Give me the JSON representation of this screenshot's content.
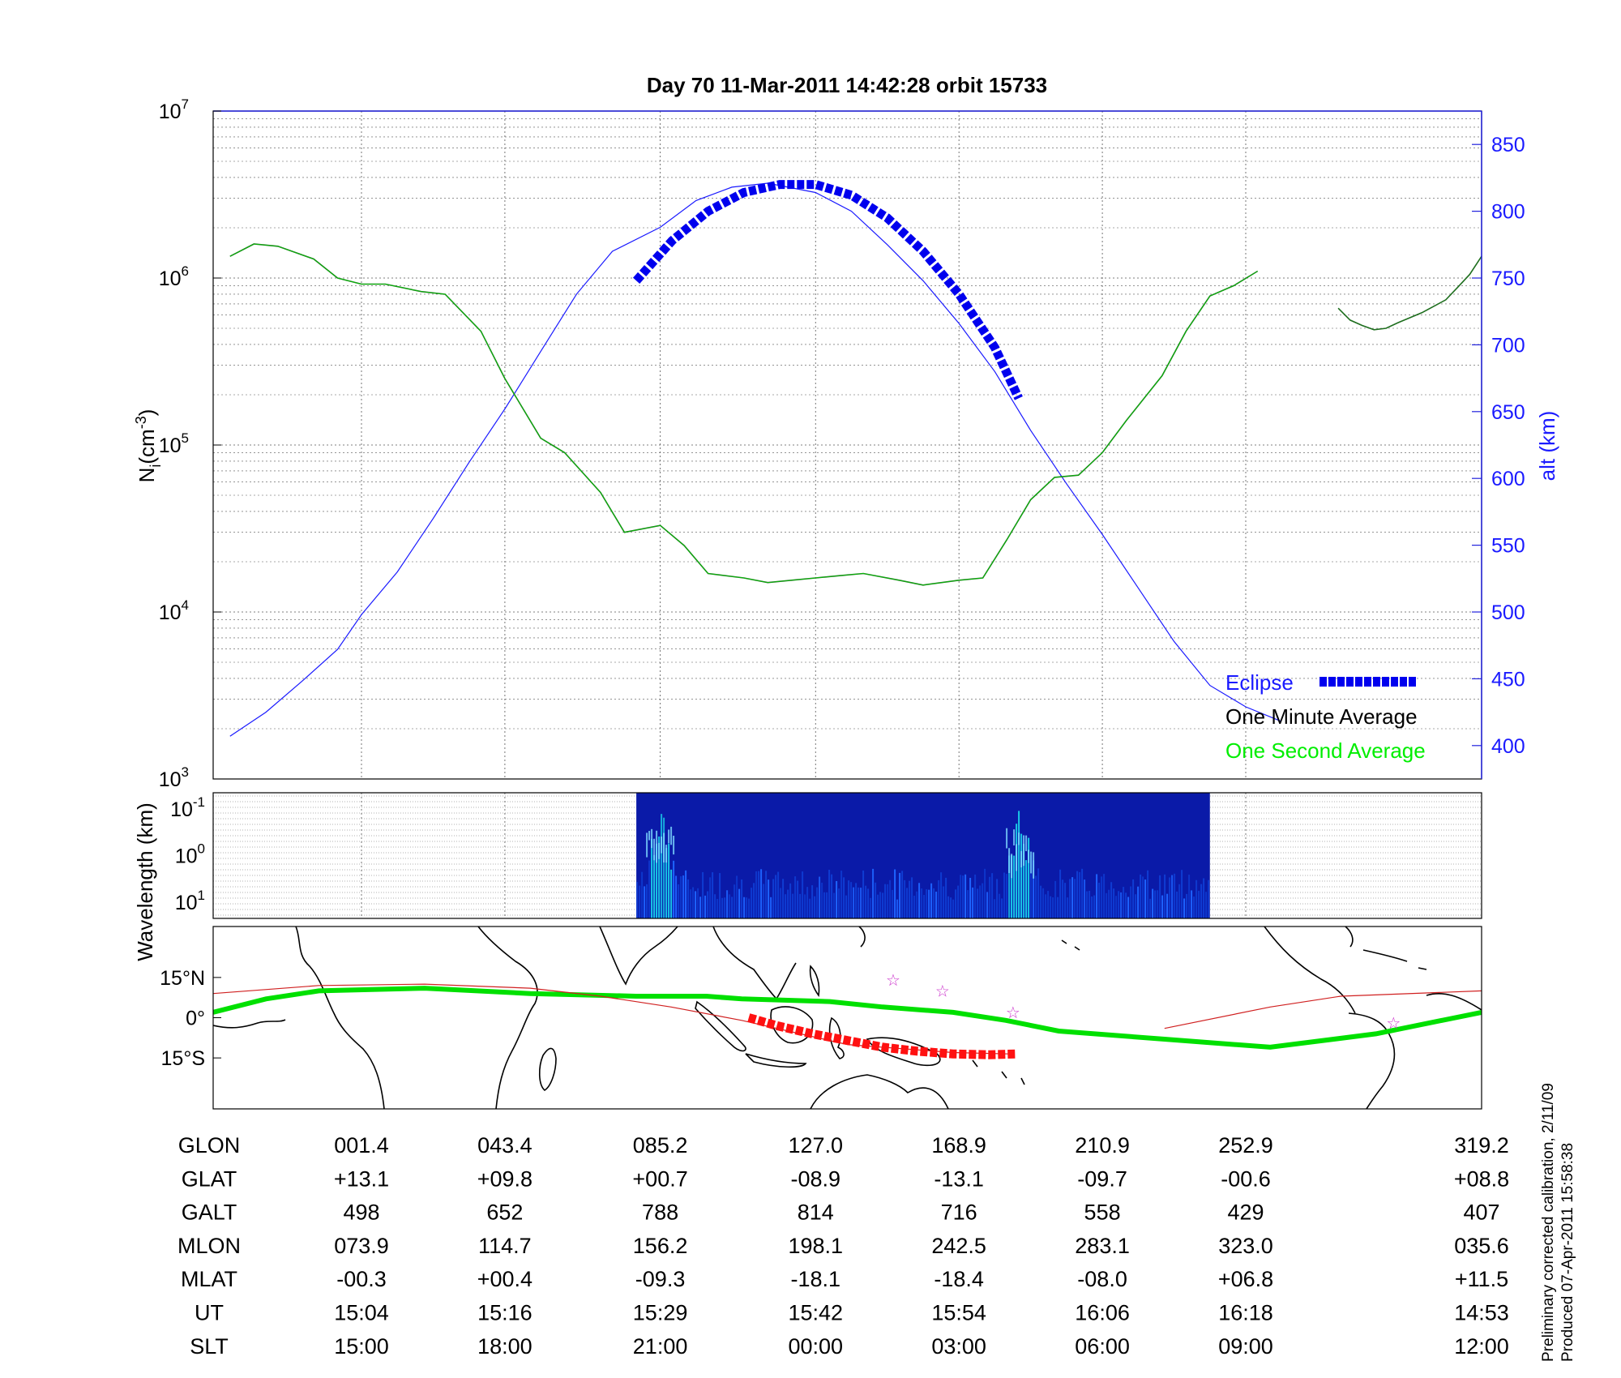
{
  "chart_data": [
    {
      "type": "line",
      "title": "Day 70  11-Mar-2011 14:42:28   orbit 15733",
      "ylabel_left": "N",
      "ylabel_left_sub": "i",
      "ylabel_left_unit": "(cm",
      "ylabel_left_exp": "-3",
      "ylabel_left_close": ")",
      "ylabel_right": "alt (km)",
      "yscale_left": "log",
      "ylim_left": [
        1000,
        10000000
      ],
      "yticks_left": [
        {
          "base": "10",
          "exp": "3",
          "value": 1000
        },
        {
          "base": "10",
          "exp": "4",
          "value": 10000
        },
        {
          "base": "10",
          "exp": "5",
          "value": 100000
        },
        {
          "base": "10",
          "exp": "6",
          "value": 1000000
        },
        {
          "base": "10",
          "exp": "7",
          "value": 10000000
        }
      ],
      "ylim_right": [
        375,
        875
      ],
      "yticks_right": [
        "400",
        "450",
        "500",
        "550",
        "600",
        "650",
        "700",
        "750",
        "800",
        "850"
      ],
      "grid": true,
      "legend_placement": "bottom-right",
      "legend": [
        {
          "label": "Eclipse",
          "color": "#0000ee",
          "style": "thick-dashed"
        },
        {
          "label": "One Minute Average",
          "color": "#000000",
          "style": "line"
        },
        {
          "label": "One Second Average",
          "color": "#00ee00",
          "style": "line"
        }
      ],
      "x_ticks_ut": [
        "15:04",
        "15:16",
        "15:29",
        "15:42",
        "15:54",
        "16:06",
        "16:18"
      ],
      "series": [
        {
          "name": "One Minute Average",
          "axis": "left",
          "color": "#1e6e1e",
          "x_ut": [
            "14:53",
            "14:55",
            "14:57",
            "15:00",
            "15:02",
            "15:04",
            "15:06",
            "15:09",
            "15:11",
            "15:14",
            "15:16",
            "15:19",
            "15:21",
            "15:24",
            "15:26",
            "15:29",
            "15:31",
            "15:33",
            "15:36",
            "15:38",
            "15:40",
            "15:42",
            "15:44",
            "15:46",
            "15:49",
            "15:51",
            "15:54",
            "15:56",
            "15:58",
            "16:00",
            "16:02",
            "16:04",
            "16:06",
            "16:08",
            "16:11",
            "16:13",
            "16:15",
            "16:17",
            "16:19"
          ],
          "values": [
            1350000,
            1600000,
            1550000,
            1300000,
            1000000,
            920000,
            920000,
            830000,
            800000,
            480000,
            250000,
            110000,
            90000,
            52000,
            30000,
            33000,
            25000,
            17000,
            16000,
            15000,
            15500,
            16000,
            16500,
            17000,
            15500,
            14500,
            15500,
            16000,
            27000,
            47000,
            64000,
            66000,
            90000,
            140000,
            260000,
            480000,
            780000,
            900000,
            1100000
          ]
        },
        {
          "name": "One Minute Average (late)",
          "axis": "left",
          "color": "#1e6e1e",
          "x_ut": [
            "14:41",
            "14:42",
            "14:43",
            "14:44",
            "14:45",
            "14:46",
            "14:48",
            "14:50",
            "14:51",
            "14:52",
            "14:53"
          ],
          "values": [
            660000,
            560000,
            520000,
            490000,
            500000,
            540000,
            620000,
            740000,
            880000,
            1050000,
            1350000
          ]
        },
        {
          "name": "Altitude",
          "axis": "right",
          "color": "#1a1aff",
          "x_ut": [
            "14:53",
            "14:56",
            "14:59",
            "15:02",
            "15:04",
            "15:07",
            "15:10",
            "15:13",
            "15:16",
            "15:19",
            "15:22",
            "15:25",
            "15:29",
            "15:32",
            "15:35",
            "15:38",
            "15:42",
            "15:45",
            "15:48",
            "15:51",
            "15:54",
            "15:57",
            "16:00",
            "16:03",
            "16:06",
            "16:09",
            "16:12",
            "16:15",
            "16:18",
            "16:21"
          ],
          "values": [
            407,
            425,
            448,
            472,
            498,
            530,
            570,
            612,
            652,
            695,
            738,
            770,
            788,
            808,
            818,
            821,
            814,
            800,
            775,
            748,
            716,
            680,
            636,
            596,
            558,
            518,
            478,
            445,
            429,
            418
          ]
        },
        {
          "name": "Eclipse",
          "axis": "right",
          "color": "#0000ee",
          "x_ut": [
            "15:27",
            "15:30",
            "15:33",
            "15:36",
            "15:39",
            "15:42",
            "15:45",
            "15:48",
            "15:51",
            "15:54",
            "15:57",
            "15:59"
          ],
          "values": [
            748,
            778,
            800,
            814,
            820,
            820,
            812,
            795,
            770,
            738,
            698,
            660
          ]
        }
      ]
    },
    {
      "type": "heatmap",
      "ylabel": "Wavelength (km)",
      "yscale": "log",
      "yticks": [
        {
          "base": "10",
          "exp": "-1"
        },
        {
          "base": "10",
          "exp": "0"
        },
        {
          "base": "10",
          "exp": "1"
        }
      ],
      "data_span_ut": [
        "15:27",
        "16:15"
      ],
      "colormap": "jet",
      "high_activity_near_ut": [
        "15:29",
        "15:59"
      ]
    },
    {
      "type": "map",
      "yticks": [
        "15°N",
        "0°",
        "15°S"
      ],
      "series": [
        {
          "name": "magnetic equator",
          "color": "#00e000",
          "lon": [
            -180,
            -165,
            -150,
            -120,
            -90,
            -60,
            -40,
            -30,
            -5,
            10,
            30,
            45,
            60,
            90,
            120,
            150,
            180
          ],
          "lat": [
            2,
            7,
            10,
            11,
            9,
            8,
            8,
            7,
            6,
            4,
            2,
            -1,
            -5,
            -8,
            -11,
            -6,
            2
          ]
        },
        {
          "name": "satellite track",
          "color": "#d02020",
          "lon": [
            -180,
            -150,
            -120,
            -90,
            -70,
            -50,
            -30,
            -10,
            0,
            30,
            46
          ],
          "lat": [
            9,
            12,
            12.5,
            11,
            8,
            4,
            -1,
            -7,
            -10,
            -13,
            -13.5
          ]
        },
        {
          "name": "satellite track (late)",
          "color": "#d02020",
          "lon": [
            90,
            120,
            140,
            180
          ],
          "lat": [
            -4,
            4,
            8,
            10
          ]
        },
        {
          "name": "eclipse track",
          "color": "#ff1111",
          "lon": [
            -28,
            -20,
            -10,
            0,
            10,
            20,
            30,
            40,
            48
          ],
          "lat": [
            0,
            -3,
            -6,
            -8.5,
            -11,
            -12.5,
            -13.5,
            -13.8,
            -13.5
          ]
        }
      ],
      "stars": [
        {
          "lon": 13,
          "lat": 14
        },
        {
          "lon": 27,
          "lat": 10
        },
        {
          "lon": 47,
          "lat": 2
        },
        {
          "lon": 155,
          "lat": -2
        }
      ]
    }
  ],
  "table": {
    "row_labels": [
      "GLON",
      "GLAT",
      "GALT",
      "MLON",
      "MLAT",
      "UT",
      "SLT"
    ],
    "columns": [
      [
        "001.4",
        "+13.1",
        "498",
        "073.9",
        "-00.3",
        "15:04",
        "15:00"
      ],
      [
        "043.4",
        "+09.8",
        "652",
        "114.7",
        "+00.4",
        "15:16",
        "18:00"
      ],
      [
        "085.2",
        "+00.7",
        "788",
        "156.2",
        "-09.3",
        "15:29",
        "21:00"
      ],
      [
        "127.0",
        "-08.9",
        "814",
        "198.1",
        "-18.1",
        "15:42",
        "00:00"
      ],
      [
        "168.9",
        "-13.1",
        "716",
        "242.5",
        "-18.4",
        "15:54",
        "03:00"
      ],
      [
        "210.9",
        "-09.7",
        "558",
        "283.1",
        "-08.0",
        "16:06",
        "06:00"
      ],
      [
        "252.9",
        "-00.6",
        "429",
        "323.0",
        "+06.8",
        "16:18",
        "09:00"
      ],
      [
        "319.2",
        "+08.8",
        "407",
        "035.6",
        "+11.5",
        "14:53",
        "12:00"
      ]
    ]
  },
  "footnote": {
    "line1": "Preliminary corrected calibration, 2/11/09",
    "line2": "Produced 07-Apr-2011 15:58:38"
  }
}
